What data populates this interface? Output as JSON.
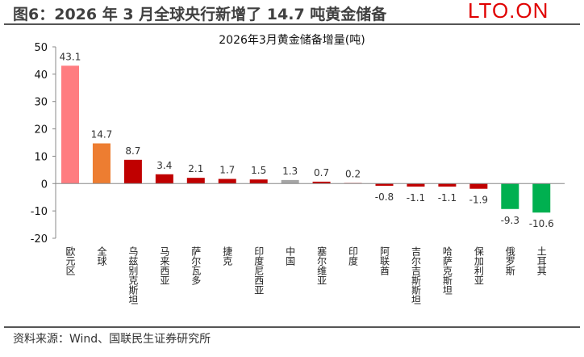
{
  "header": {
    "title": "图6：2026 年 3 月全球央行新增了 14.7 吨黄金储备",
    "watermark": "LTO.ON"
  },
  "footer": {
    "source": "资料来源：Wind、国联民生证券研究所"
  },
  "chart_data": {
    "type": "bar",
    "title": "2026年3月黄金储备增量(吨)",
    "categories": [
      "欧元区",
      "全球",
      "乌兹别克斯坦",
      "马来西亚",
      "萨尔瓦多",
      "捷克",
      "印度尼西亚",
      "中国",
      "塞尔维亚",
      "印度",
      "阿联酋",
      "吉尔吉斯斯坦",
      "哈萨克斯坦",
      "保加利亚",
      "俄罗斯",
      "土耳其"
    ],
    "values": [
      43.1,
      14.7,
      8.7,
      3.4,
      2.1,
      1.7,
      1.5,
      1.3,
      0.7,
      0.2,
      -0.8,
      -1.1,
      -1.1,
      -1.9,
      -9.3,
      -10.6
    ],
    "colors": [
      "#FF7C80",
      "#ED7D31",
      "#C00000",
      "#C00000",
      "#C00000",
      "#C00000",
      "#C00000",
      "#A6A6A6",
      "#C00000",
      "#C00000",
      "#C00000",
      "#C00000",
      "#C00000",
      "#C00000",
      "#00B050",
      "#00B050"
    ],
    "ylim": [
      -20,
      50
    ],
    "yticks": [
      -20,
      -10,
      0,
      10,
      20,
      30,
      40,
      50
    ],
    "grid": false
  }
}
